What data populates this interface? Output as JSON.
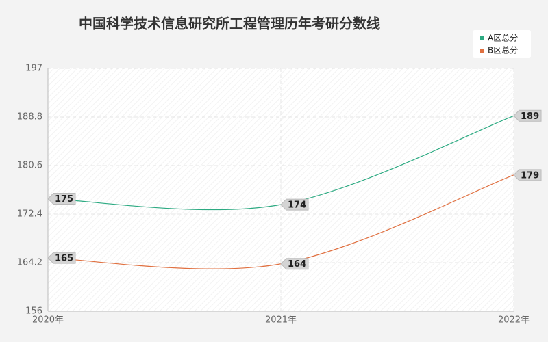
{
  "chart_data": {
    "type": "line",
    "title": "中国科学技术信息研究所工程管理历年考研分数线",
    "categories": [
      "2020年",
      "2021年",
      "2022年"
    ],
    "series": [
      {
        "name": "A区总分",
        "color": "#2daa82",
        "values": [
          175,
          174,
          189
        ]
      },
      {
        "name": "B区总分",
        "color": "#e07040",
        "values": [
          165,
          164,
          179
        ]
      }
    ],
    "ylim": [
      156,
      197
    ],
    "yticks": [
      156,
      164.2,
      172.4,
      180.6,
      188.8,
      197
    ],
    "grid": true,
    "legend": "top-right"
  }
}
